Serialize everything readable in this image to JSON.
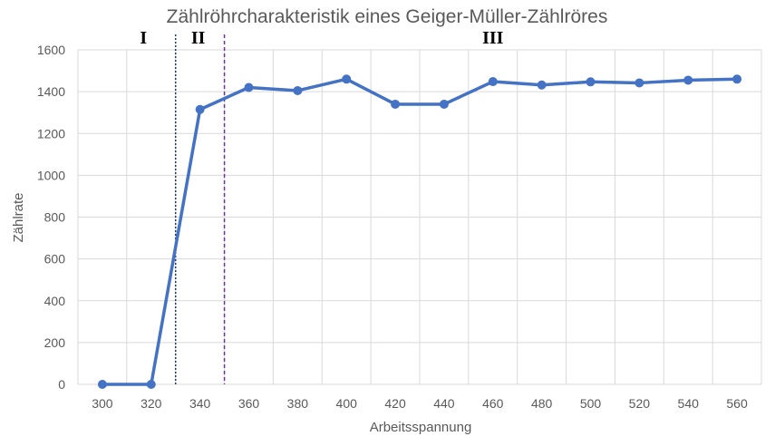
{
  "chart_data": {
    "type": "line",
    "title": "Zählröhrcharakteristik eines Geiger-Müller-Zählröres",
    "xlabel": "Arbeitsspannung",
    "ylabel": "Zählrate",
    "x": [
      300,
      320,
      340,
      360,
      380,
      400,
      420,
      440,
      460,
      480,
      500,
      520,
      540,
      560
    ],
    "xticks": [
      "300",
      "320",
      "340",
      "360",
      "380",
      "400",
      "420",
      "440",
      "460",
      "480",
      "500",
      "520",
      "540",
      "560"
    ],
    "ylim": [
      0,
      1600
    ],
    "yticks": [
      "0",
      "200",
      "400",
      "600",
      "800",
      "1000",
      "1200",
      "1400",
      "1600"
    ],
    "series": [
      {
        "values": [
          0,
          0,
          1315,
          1420,
          1405,
          1460,
          1340,
          1340,
          1448,
          1432,
          1447,
          1442,
          1455,
          1460
        ],
        "color": "#4472C4"
      }
    ],
    "grid": true,
    "legend": "none",
    "region_labels": [
      "I",
      "II",
      "III"
    ],
    "region_boundaries": [
      {
        "x": 330,
        "color": "#1F3864",
        "style": "dotted"
      },
      {
        "x": 350,
        "color": "#7030A0",
        "style": "dashed"
      }
    ]
  }
}
